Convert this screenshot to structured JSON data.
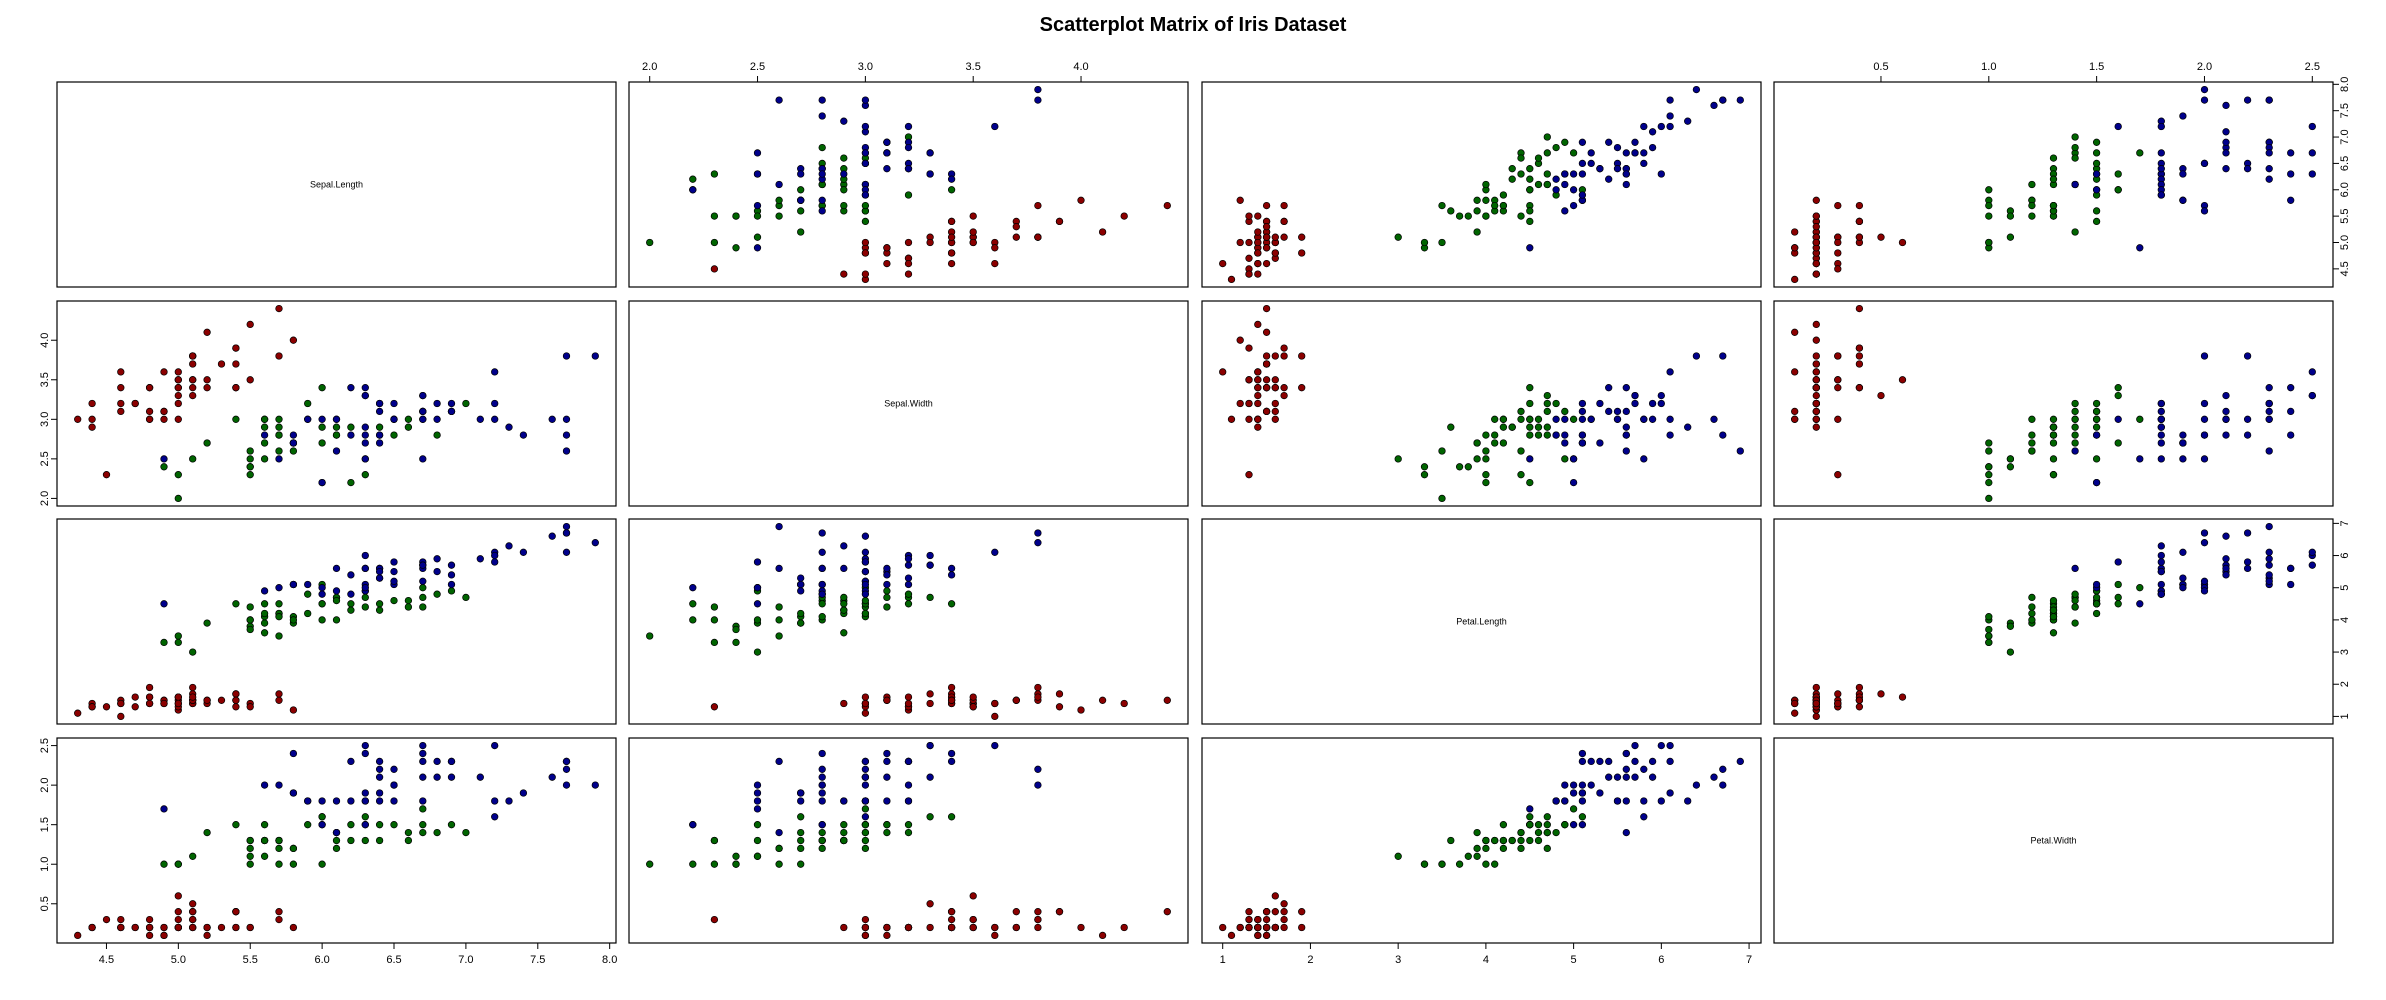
{
  "chart_data": {
    "type": "scatter",
    "title": "Scatterplot Matrix of Iris Dataset",
    "variables": [
      "Sepal.Length",
      "Sepal.Width",
      "Petal.Length",
      "Petal.Width"
    ],
    "ranges": [
      [
        4.3,
        7.9
      ],
      [
        2.0,
        4.4
      ],
      [
        1.0,
        6.9
      ],
      [
        0.1,
        2.5
      ]
    ],
    "ticks": [
      [
        4.5,
        5.0,
        5.5,
        6.0,
        6.5,
        7.0,
        7.5,
        8.0
      ],
      [
        2.0,
        2.5,
        3.0,
        3.5,
        4.0
      ],
      [
        1,
        2,
        3,
        4,
        5,
        6,
        7
      ],
      [
        0.5,
        1.0,
        1.5,
        2.0,
        2.5
      ]
    ],
    "tick_labels": [
      [
        "4.5",
        "5.0",
        "5.5",
        "6.0",
        "6.5",
        "7.0",
        "7.5",
        "8.0"
      ],
      [
        "2.0",
        "2.5",
        "3.0",
        "3.5",
        "4.0"
      ],
      [
        "1",
        "2",
        "3",
        "4",
        "5",
        "6",
        "7"
      ],
      [
        "0.5",
        "1.0",
        "1.5",
        "2.0",
        "2.5"
      ]
    ],
    "grid": false,
    "legend": "none",
    "group_colors": [
      "#8b0000",
      "#006400",
      "#00008b"
    ],
    "series": [
      {
        "points": [
          [
            5.1,
            3.5,
            1.4,
            0.2
          ],
          [
            4.9,
            3.0,
            1.4,
            0.2
          ],
          [
            4.7,
            3.2,
            1.3,
            0.2
          ],
          [
            4.6,
            3.1,
            1.5,
            0.2
          ],
          [
            5.0,
            3.6,
            1.4,
            0.2
          ],
          [
            5.4,
            3.9,
            1.7,
            0.4
          ],
          [
            4.6,
            3.4,
            1.4,
            0.3
          ],
          [
            5.0,
            3.4,
            1.5,
            0.2
          ],
          [
            4.4,
            2.9,
            1.4,
            0.2
          ],
          [
            4.9,
            3.1,
            1.5,
            0.1
          ],
          [
            5.4,
            3.7,
            1.5,
            0.2
          ],
          [
            4.8,
            3.4,
            1.6,
            0.2
          ],
          [
            4.8,
            3.0,
            1.4,
            0.1
          ],
          [
            4.3,
            3.0,
            1.1,
            0.1
          ],
          [
            5.8,
            4.0,
            1.2,
            0.2
          ],
          [
            5.7,
            4.4,
            1.5,
            0.4
          ],
          [
            5.4,
            3.9,
            1.3,
            0.4
          ],
          [
            5.1,
            3.5,
            1.4,
            0.3
          ],
          [
            5.7,
            3.8,
            1.7,
            0.3
          ],
          [
            5.1,
            3.8,
            1.5,
            0.3
          ],
          [
            5.4,
            3.4,
            1.7,
            0.2
          ],
          [
            5.1,
            3.7,
            1.5,
            0.4
          ],
          [
            4.6,
            3.6,
            1.0,
            0.2
          ],
          [
            5.1,
            3.3,
            1.7,
            0.5
          ],
          [
            4.8,
            3.4,
            1.9,
            0.2
          ],
          [
            5.0,
            3.0,
            1.6,
            0.2
          ],
          [
            5.0,
            3.4,
            1.6,
            0.4
          ],
          [
            5.2,
            3.5,
            1.5,
            0.2
          ],
          [
            5.2,
            3.4,
            1.4,
            0.2
          ],
          [
            4.7,
            3.2,
            1.6,
            0.2
          ],
          [
            4.8,
            3.1,
            1.6,
            0.2
          ],
          [
            5.4,
            3.4,
            1.5,
            0.4
          ],
          [
            5.2,
            4.1,
            1.5,
            0.1
          ],
          [
            5.5,
            4.2,
            1.4,
            0.2
          ],
          [
            4.9,
            3.1,
            1.5,
            0.2
          ],
          [
            5.0,
            3.2,
            1.2,
            0.2
          ],
          [
            5.5,
            3.5,
            1.3,
            0.2
          ],
          [
            4.9,
            3.6,
            1.4,
            0.1
          ],
          [
            4.4,
            3.0,
            1.3,
            0.2
          ],
          [
            5.1,
            3.4,
            1.5,
            0.2
          ],
          [
            5.0,
            3.5,
            1.3,
            0.3
          ],
          [
            4.5,
            2.3,
            1.3,
            0.3
          ],
          [
            4.4,
            3.2,
            1.3,
            0.2
          ],
          [
            5.0,
            3.5,
            1.6,
            0.6
          ],
          [
            5.1,
            3.8,
            1.9,
            0.4
          ],
          [
            4.8,
            3.0,
            1.4,
            0.3
          ],
          [
            5.1,
            3.8,
            1.6,
            0.2
          ],
          [
            4.6,
            3.2,
            1.4,
            0.2
          ],
          [
            5.3,
            3.7,
            1.5,
            0.2
          ],
          [
            5.0,
            3.3,
            1.4,
            0.2
          ]
        ]
      },
      {
        "points": [
          [
            7.0,
            3.2,
            4.7,
            1.4
          ],
          [
            6.4,
            3.2,
            4.5,
            1.5
          ],
          [
            6.9,
            3.1,
            4.9,
            1.5
          ],
          [
            5.5,
            2.3,
            4.0,
            1.3
          ],
          [
            6.5,
            2.8,
            4.6,
            1.5
          ],
          [
            5.7,
            2.8,
            4.5,
            1.3
          ],
          [
            6.3,
            3.3,
            4.7,
            1.6
          ],
          [
            4.9,
            2.4,
            3.3,
            1.0
          ],
          [
            6.6,
            2.9,
            4.6,
            1.3
          ],
          [
            5.2,
            2.7,
            3.9,
            1.4
          ],
          [
            5.0,
            2.0,
            3.5,
            1.0
          ],
          [
            5.9,
            3.0,
            4.2,
            1.5
          ],
          [
            6.0,
            2.2,
            4.0,
            1.0
          ],
          [
            6.1,
            2.9,
            4.7,
            1.4
          ],
          [
            5.6,
            2.9,
            3.6,
            1.3
          ],
          [
            6.7,
            3.1,
            4.4,
            1.4
          ],
          [
            5.6,
            3.0,
            4.5,
            1.5
          ],
          [
            5.8,
            2.7,
            4.1,
            1.0
          ],
          [
            6.2,
            2.2,
            4.5,
            1.5
          ],
          [
            5.6,
            2.5,
            3.9,
            1.1
          ],
          [
            5.9,
            3.2,
            4.8,
            1.8
          ],
          [
            6.1,
            2.8,
            4.0,
            1.3
          ],
          [
            6.3,
            2.5,
            4.9,
            1.5
          ],
          [
            6.1,
            2.8,
            4.7,
            1.2
          ],
          [
            6.4,
            2.9,
            4.3,
            1.3
          ],
          [
            6.6,
            3.0,
            4.4,
            1.4
          ],
          [
            6.8,
            2.8,
            4.8,
            1.4
          ],
          [
            6.7,
            3.0,
            5.0,
            1.7
          ],
          [
            6.0,
            2.9,
            4.5,
            1.5
          ],
          [
            5.7,
            2.6,
            3.5,
            1.0
          ],
          [
            5.5,
            2.4,
            3.8,
            1.1
          ],
          [
            5.5,
            2.4,
            3.7,
            1.0
          ],
          [
            5.8,
            2.7,
            3.9,
            1.2
          ],
          [
            6.0,
            2.7,
            5.1,
            1.6
          ],
          [
            5.4,
            3.0,
            4.5,
            1.5
          ],
          [
            6.0,
            3.4,
            4.5,
            1.6
          ],
          [
            6.7,
            3.1,
            4.7,
            1.5
          ],
          [
            6.3,
            2.3,
            4.4,
            1.3
          ],
          [
            5.6,
            3.0,
            4.1,
            1.3
          ],
          [
            5.5,
            2.5,
            4.0,
            1.3
          ],
          [
            5.5,
            2.6,
            4.4,
            1.2
          ],
          [
            6.1,
            3.0,
            4.6,
            1.4
          ],
          [
            5.8,
            2.6,
            4.0,
            1.2
          ],
          [
            5.0,
            2.3,
            3.3,
            1.0
          ],
          [
            5.6,
            2.7,
            4.2,
            1.3
          ],
          [
            5.7,
            3.0,
            4.2,
            1.2
          ],
          [
            5.7,
            2.9,
            4.2,
            1.3
          ],
          [
            6.2,
            2.9,
            4.3,
            1.3
          ],
          [
            5.1,
            2.5,
            3.0,
            1.1
          ],
          [
            5.7,
            2.8,
            4.1,
            1.3
          ]
        ]
      },
      {
        "points": [
          [
            6.3,
            3.3,
            6.0,
            2.5
          ],
          [
            5.8,
            2.7,
            5.1,
            1.9
          ],
          [
            7.1,
            3.0,
            5.9,
            2.1
          ],
          [
            6.3,
            2.9,
            5.6,
            1.8
          ],
          [
            6.5,
            3.0,
            5.8,
            2.2
          ],
          [
            7.6,
            3.0,
            6.6,
            2.1
          ],
          [
            4.9,
            2.5,
            4.5,
            1.7
          ],
          [
            7.3,
            2.9,
            6.3,
            1.8
          ],
          [
            6.7,
            2.5,
            5.8,
            1.8
          ],
          [
            7.2,
            3.6,
            6.1,
            2.5
          ],
          [
            6.5,
            3.2,
            5.1,
            2.0
          ],
          [
            6.4,
            2.7,
            5.3,
            1.9
          ],
          [
            6.8,
            3.0,
            5.5,
            2.1
          ],
          [
            5.7,
            2.5,
            5.0,
            2.0
          ],
          [
            5.8,
            2.8,
            5.1,
            2.4
          ],
          [
            6.4,
            3.2,
            5.3,
            2.3
          ],
          [
            6.5,
            3.0,
            5.5,
            1.8
          ],
          [
            7.7,
            3.8,
            6.7,
            2.2
          ],
          [
            7.7,
            2.6,
            6.9,
            2.3
          ],
          [
            6.0,
            2.2,
            5.0,
            1.5
          ],
          [
            6.9,
            3.2,
            5.7,
            2.3
          ],
          [
            5.6,
            2.8,
            4.9,
            2.0
          ],
          [
            7.7,
            2.8,
            6.7,
            2.0
          ],
          [
            6.3,
            2.7,
            4.9,
            1.8
          ],
          [
            6.7,
            3.3,
            5.7,
            2.1
          ],
          [
            7.2,
            3.2,
            6.0,
            1.8
          ],
          [
            6.2,
            2.8,
            4.8,
            1.8
          ],
          [
            6.1,
            3.0,
            4.9,
            1.8
          ],
          [
            6.4,
            2.8,
            5.6,
            2.1
          ],
          [
            7.2,
            3.0,
            5.8,
            1.6
          ],
          [
            7.4,
            2.8,
            6.1,
            1.9
          ],
          [
            7.9,
            3.8,
            6.4,
            2.0
          ],
          [
            6.4,
            2.8,
            5.6,
            2.2
          ],
          [
            6.3,
            2.8,
            5.1,
            1.5
          ],
          [
            6.1,
            2.6,
            5.6,
            1.4
          ],
          [
            7.7,
            3.0,
            6.1,
            2.3
          ],
          [
            6.3,
            3.4,
            5.6,
            2.4
          ],
          [
            6.4,
            3.1,
            5.5,
            1.8
          ],
          [
            6.0,
            3.0,
            4.8,
            1.8
          ],
          [
            6.9,
            3.1,
            5.4,
            2.1
          ],
          [
            6.7,
            3.1,
            5.6,
            2.4
          ],
          [
            6.9,
            3.1,
            5.1,
            2.3
          ],
          [
            5.8,
            2.7,
            5.1,
            1.9
          ],
          [
            6.8,
            3.2,
            5.9,
            2.3
          ],
          [
            6.7,
            3.3,
            5.7,
            2.5
          ],
          [
            6.7,
            3.0,
            5.2,
            2.3
          ],
          [
            6.3,
            2.5,
            5.0,
            1.9
          ],
          [
            6.5,
            3.0,
            5.2,
            2.0
          ],
          [
            6.2,
            3.4,
            5.4,
            2.3
          ],
          [
            5.9,
            3.0,
            5.1,
            1.8
          ]
        ]
      }
    ]
  }
}
